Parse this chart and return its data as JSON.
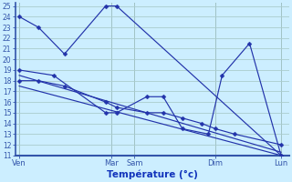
{
  "background_color": "#cceeff",
  "grid_color": "#aacccc",
  "line_color": "#2233aa",
  "xlabel": "Température (°c)",
  "ylim_min": 11,
  "ylim_max": 25,
  "xlim_min": 0,
  "xlim_max": 10,
  "ytick_fontsize": 5.5,
  "xtick_fontsize": 6.0,
  "xlabel_fontsize": 7.5,
  "xtick_positions": [
    0.15,
    3.5,
    4.35,
    7.3,
    9.7
  ],
  "xtick_labels": [
    "Ven",
    "Mar",
    "Sam",
    "Dim",
    "Lun"
  ],
  "vline_positions": [
    0.15,
    3.5,
    4.35,
    7.3,
    9.7
  ],
  "line1_x": [
    0.15,
    0.85,
    1.8,
    3.3,
    3.7,
    9.7
  ],
  "line1_y": [
    24,
    23,
    20.5,
    25,
    25,
    11
  ],
  "line2_x": [
    0.15,
    1.4,
    3.3,
    3.7,
    4.8,
    5.4,
    6.1,
    7.05,
    7.55,
    8.55,
    9.7
  ],
  "line2_y": [
    19,
    18.5,
    15,
    15,
    16.5,
    16.5,
    13.5,
    13,
    18.5,
    21.5,
    11
  ],
  "line3_x": [
    0.15,
    0.85,
    1.8,
    3.3,
    3.7,
    4.8,
    5.4,
    6.1,
    6.8,
    7.3,
    8.0,
    9.7
  ],
  "line3_y": [
    18,
    18,
    17.5,
    16,
    15.5,
    15,
    15,
    14.5,
    14,
    13.5,
    13,
    12
  ],
  "line4_x": [
    0.15,
    9.7
  ],
  "line4_y": [
    18.5,
    11.3
  ],
  "line5_x": [
    0.15,
    9.7
  ],
  "line5_y": [
    17.5,
    11.0
  ],
  "marker_style": "D",
  "marker_size": 2.5,
  "lw": 0.85
}
